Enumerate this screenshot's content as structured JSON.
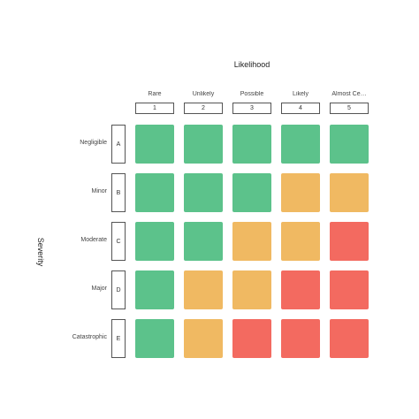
{
  "chart_data": {
    "type": "heatmap",
    "title": "",
    "xlabel": "Likelihood",
    "ylabel": "Severity",
    "columns": [
      {
        "label": "Rare",
        "code": "1"
      },
      {
        "label": "Unlikely",
        "code": "2"
      },
      {
        "label": "Possible",
        "code": "3"
      },
      {
        "label": "Likely",
        "code": "4"
      },
      {
        "label": "Almost Ce…",
        "code": "5"
      }
    ],
    "rows": [
      {
        "label": "Negligible",
        "code": "A"
      },
      {
        "label": "Minor",
        "code": "B"
      },
      {
        "label": "Moderate",
        "code": "C"
      },
      {
        "label": "Major",
        "code": "D"
      },
      {
        "label": "Catastrophic",
        "code": "E"
      }
    ],
    "levels": [
      "low",
      "medium",
      "high"
    ],
    "level_colors": {
      "low": "#5cc28b",
      "medium": "#f0b962",
      "high": "#f36a60"
    },
    "matrix": [
      [
        "low",
        "low",
        "low",
        "low",
        "low"
      ],
      [
        "low",
        "low",
        "low",
        "medium",
        "medium"
      ],
      [
        "low",
        "low",
        "medium",
        "medium",
        "high"
      ],
      [
        "low",
        "medium",
        "medium",
        "high",
        "high"
      ],
      [
        "low",
        "medium",
        "high",
        "high",
        "high"
      ]
    ],
    "grid": false,
    "legend": "none"
  }
}
